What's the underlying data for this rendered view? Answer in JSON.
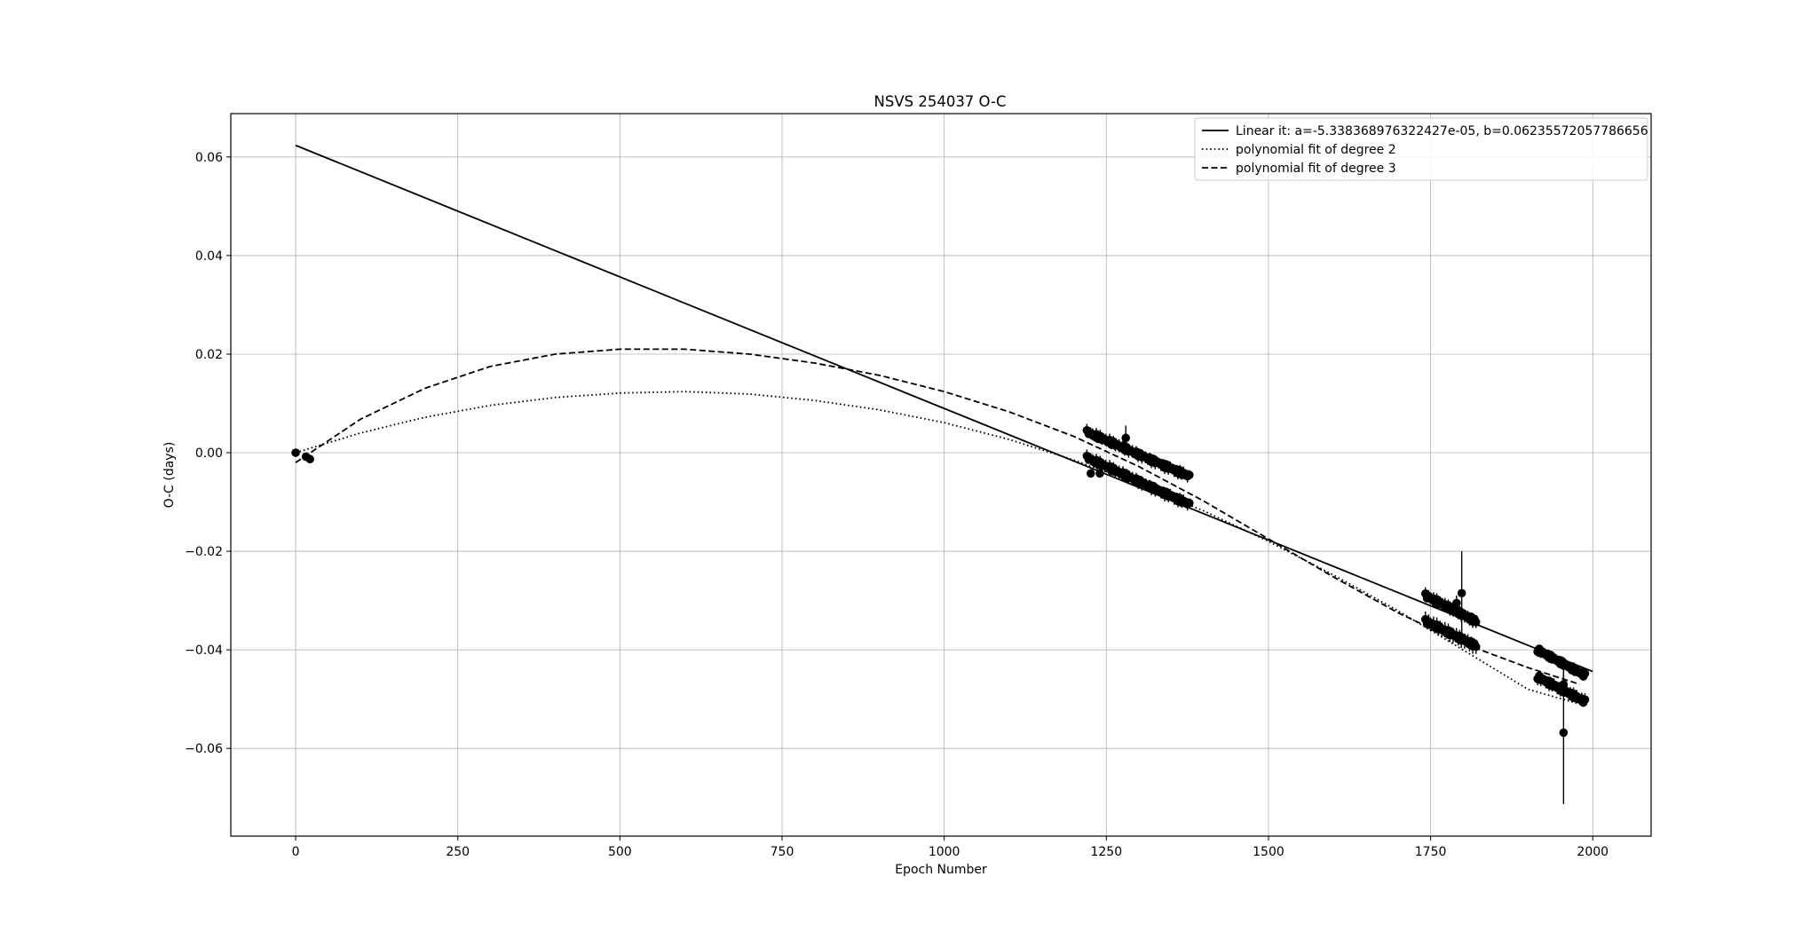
{
  "chart_data": {
    "type": "scatter",
    "title": "NSVS 254037 O-C",
    "xlabel": "Epoch Number",
    "ylabel": "O-C (days)",
    "xlim": [
      -100,
      2090
    ],
    "ylim": [
      -0.0778,
      0.0688
    ],
    "xticks": [
      0,
      250,
      500,
      750,
      1000,
      1250,
      1500,
      1750,
      2000
    ],
    "xtick_labels": [
      "0",
      "250",
      "500",
      "750",
      "1000",
      "1250",
      "1500",
      "1750",
      "2000"
    ],
    "yticks": [
      -0.06,
      -0.04,
      -0.02,
      0.0,
      0.02,
      0.04,
      0.06
    ],
    "ytick_labels": [
      "−0.06",
      "−0.04",
      "−0.02",
      "0.00",
      "0.02",
      "0.04",
      "0.06"
    ],
    "grid": true,
    "legend_position": "top-right",
    "series": [
      {
        "name": "Linear it: a=-5.338368976322427e-05, b=0.06235572057786656",
        "kind": "line",
        "style": "solid",
        "x": [
          0,
          2000
        ],
        "y": [
          0.06236,
          -0.04441
        ]
      },
      {
        "name": "polynomial fit of degree 2",
        "kind": "line",
        "style": "dotted",
        "x": [
          0,
          100,
          200,
          300,
          400,
          500,
          600,
          700,
          800,
          900,
          1000,
          1100,
          1200,
          1300,
          1400,
          1500,
          1600,
          1700,
          1800,
          1900,
          1980
        ],
        "y": [
          0.0,
          0.004,
          0.0072,
          0.0096,
          0.0112,
          0.0121,
          0.0124,
          0.0119,
          0.0106,
          0.0087,
          0.0061,
          0.0027,
          -0.0015,
          -0.0063,
          -0.0118,
          -0.018,
          -0.0248,
          -0.0321,
          -0.04,
          -0.048,
          -0.051
        ]
      },
      {
        "name": "polynomial fit of degree 3",
        "kind": "line",
        "style": "dashed",
        "x": [
          0,
          100,
          200,
          300,
          400,
          500,
          600,
          700,
          800,
          900,
          1000,
          1100,
          1200,
          1300,
          1400,
          1500,
          1600,
          1700,
          1800,
          1900,
          1980
        ],
        "y": [
          -0.002,
          0.0068,
          0.0131,
          0.0175,
          0.02,
          0.021,
          0.021,
          0.02,
          0.0182,
          0.0157,
          0.0124,
          0.0083,
          0.0033,
          -0.0028,
          -0.0098,
          -0.0175,
          -0.0252,
          -0.0325,
          -0.0387,
          -0.0436,
          -0.047
        ]
      },
      {
        "name": "data",
        "kind": "errorbar-points",
        "points": [
          {
            "x": 0,
            "y": 0.0,
            "e": 0.0004
          },
          {
            "x": 16,
            "y": -0.0008,
            "e": 0.0004
          },
          {
            "x": 22,
            "y": -0.0013,
            "e": 0.0004
          },
          {
            "x": 1280,
            "y": 0.003,
            "e": 0.0025
          },
          {
            "x": 1240,
            "y": -0.0042,
            "e": 0.0008
          },
          {
            "x": 1226,
            "y": -0.0042,
            "e": 0.0008
          },
          {
            "x": 1798,
            "y": -0.0285,
            "e": 0.0085
          },
          {
            "x": 1790,
            "y": -0.0305,
            "e": 0.0015
          },
          {
            "x": 1955,
            "y": -0.0568,
            "e": 0.0145
          },
          {
            "x": 1955,
            "y": -0.047,
            "e": 0.002
          }
        ],
        "clusters": [
          {
            "x0": 1220,
            "x1": 1378,
            "y0": 0.0042,
            "y1": -0.0048,
            "n": 55,
            "e": 0.001
          },
          {
            "x0": 1220,
            "x1": 1378,
            "y0": -0.001,
            "y1": -0.0105,
            "n": 55,
            "e": 0.001
          },
          {
            "x0": 1742,
            "x1": 1820,
            "y0": -0.029,
            "y1": -0.0342,
            "n": 32,
            "e": 0.001
          },
          {
            "x0": 1742,
            "x1": 1820,
            "y0": -0.0342,
            "y1": -0.0392,
            "n": 32,
            "e": 0.0012
          },
          {
            "x0": 1915,
            "x1": 1988,
            "y0": -0.04,
            "y1": -0.0452,
            "n": 30,
            "e": 0.0008
          },
          {
            "x0": 1915,
            "x1": 1988,
            "y0": -0.0455,
            "y1": -0.0505,
            "n": 30,
            "e": 0.001
          }
        ]
      }
    ]
  }
}
